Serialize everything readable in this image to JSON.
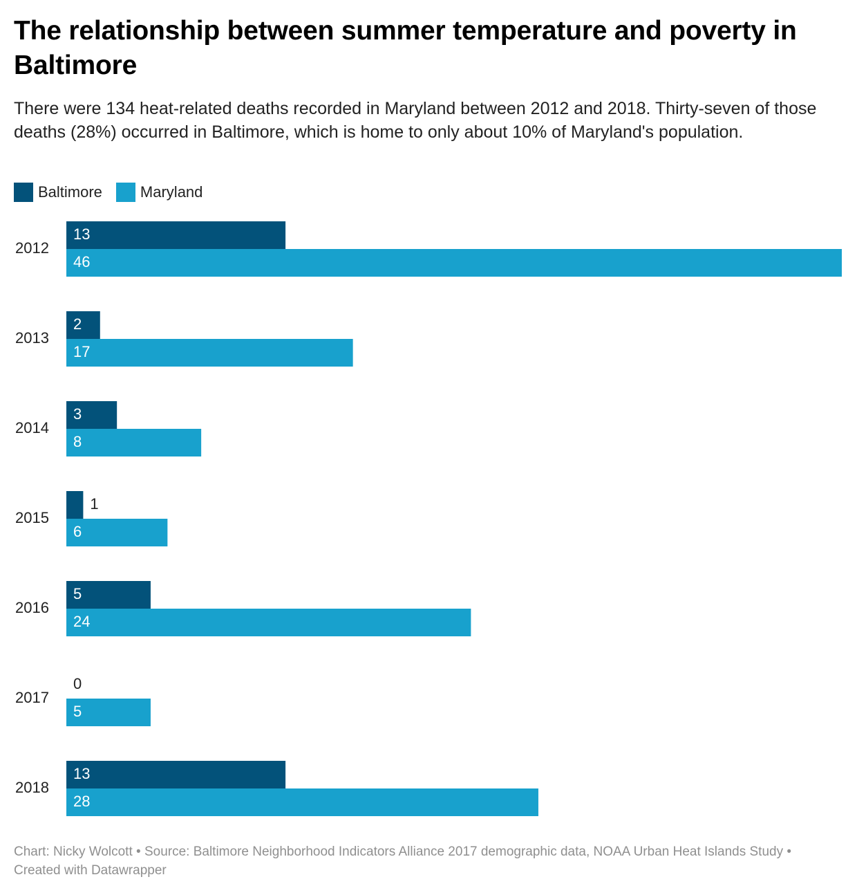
{
  "header": {
    "title": "The relationship between summer temperature and poverty in Baltimore",
    "subtitle": "There were 134 heat-related deaths recorded in Maryland between 2012 and 2018. Thirty-seven of those deaths (28%) occurred in Baltimore, which is home to only about 10% of Maryland's population."
  },
  "footer": {
    "credit": "Chart: Nicky Wolcott • Source: Baltimore Neighborhood Indicators Alliance 2017 demographic data, NOAA Urban Heat Islands Study • Created with Datawrapper"
  },
  "colors": {
    "baltimore": "#03527a",
    "maryland": "#18a1cd",
    "label_inside": "#ffffff",
    "label_outside": "#222222"
  },
  "chart_data": {
    "type": "bar",
    "orientation": "horizontal",
    "categories": [
      "2012",
      "2013",
      "2014",
      "2015",
      "2016",
      "2017",
      "2018"
    ],
    "series": [
      {
        "name": "Baltimore",
        "values": [
          13,
          2,
          3,
          1,
          5,
          0,
          13
        ]
      },
      {
        "name": "Maryland",
        "values": [
          46,
          17,
          8,
          6,
          24,
          5,
          28
        ]
      }
    ],
    "xlim": [
      0,
      46
    ],
    "grid": false,
    "legend_position": "top-left",
    "data_labels": true
  }
}
